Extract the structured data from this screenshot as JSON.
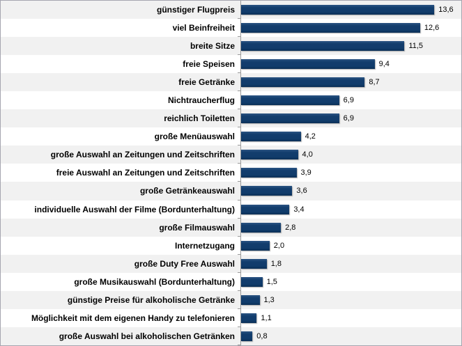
{
  "chart_data": {
    "type": "bar",
    "orientation": "horizontal",
    "title": "",
    "xlabel": "",
    "ylabel": "",
    "grid": false,
    "legend": "none",
    "xlim": [
      0,
      15.5
    ],
    "bar_color": "#123d6d",
    "row_alt_color": "#f1f1f1",
    "row_color": "#ffffff",
    "axis_color": "#999999",
    "categories": [
      "günstiger Flugpreis",
      "viel Beinfreiheit",
      "breite Sitze",
      "freie Speisen",
      "freie Getränke",
      "Nichtraucherflug",
      "reichlich Toiletten",
      "große Menüauswahl",
      "große Auswahl an Zeitungen und Zeitschriften",
      "freie Auswahl an Zeitungen und Zeitschriften",
      "große Getränkeauswahl",
      "individuelle Auswahl der Filme (Bordunterhaltung)",
      "große Filmauswahl",
      "Internetzugang",
      "große Duty Free Auswahl",
      "große Musikauswahl (Bordunterhaltung)",
      "günstige Preise für alkoholische Getränke",
      "Möglichkeit mit dem eigenen Handy zu telefonieren",
      "große Auswahl bei alkoholischen Getränken"
    ],
    "values": [
      13.6,
      12.6,
      11.5,
      9.4,
      8.7,
      6.9,
      6.9,
      4.2,
      4.0,
      3.9,
      3.6,
      3.4,
      2.8,
      2.0,
      1.8,
      1.5,
      1.3,
      1.1,
      0.8
    ],
    "value_labels": [
      "13,6",
      "12,6",
      "11,5",
      "9,4",
      "8,7",
      "6,9",
      "6,9",
      "4,2",
      "4,0",
      "3,9",
      "3,6",
      "3,4",
      "2,8",
      "2,0",
      "1,8",
      "1,5",
      "1,3",
      "1,1",
      "0,8"
    ]
  }
}
